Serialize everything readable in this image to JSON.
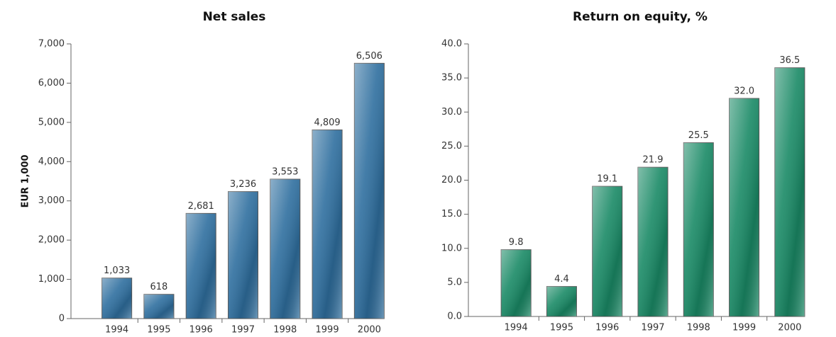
{
  "chart_data": [
    {
      "type": "bar",
      "title": "Net sales",
      "y_label": "EUR 1,000",
      "categories": [
        "1994",
        "1995",
        "1996",
        "1997",
        "1998",
        "1999",
        "2000"
      ],
      "values": [
        1033,
        618,
        2681,
        3236,
        3553,
        4809,
        6506
      ],
      "value_labels": [
        "1,033",
        "618",
        "2,681",
        "3,236",
        "3,553",
        "4,809",
        "6,506"
      ],
      "color": "#2f6f9f",
      "ylim": [
        0,
        7000
      ],
      "yticks": [
        0,
        {
          "value": 1000,
          "label": "1,000"
        },
        {
          "value": 2000,
          "label": "2,000"
        },
        {
          "value": 3000,
          "label": "3,000"
        },
        {
          "value": 4000,
          "label": "4,000"
        },
        {
          "value": 5000,
          "label": "5,000"
        },
        {
          "value": 6000,
          "label": "6,000"
        },
        {
          "value": 7000,
          "label": "7,000"
        }
      ]
    },
    {
      "type": "bar",
      "title": "Return on equity, %",
      "categories": [
        "1994",
        "1995",
        "1996",
        "1997",
        "1998",
        "1999",
        "2000"
      ],
      "values": [
        9.8,
        4.4,
        19.1,
        21.9,
        25.5,
        32.0,
        36.5
      ],
      "value_labels": [
        "9.8",
        "4.4",
        "19.1",
        "21.9",
        "25.5",
        "32.0",
        "36.5"
      ],
      "color": "#1a8a66",
      "ylim": [
        0,
        40
      ],
      "yticks": [
        {
          "value": 0,
          "label": "0.0"
        },
        {
          "value": 5,
          "label": "5.0"
        },
        {
          "value": 10,
          "label": "10.0"
        },
        {
          "value": 15,
          "label": "15.0"
        },
        {
          "value": 20,
          "label": "20.0"
        },
        {
          "value": 25,
          "label": "25.0"
        },
        {
          "value": 30,
          "label": "30.0"
        },
        {
          "value": 35,
          "label": "35.0"
        },
        {
          "value": 40,
          "label": "40.0"
        }
      ]
    }
  ]
}
